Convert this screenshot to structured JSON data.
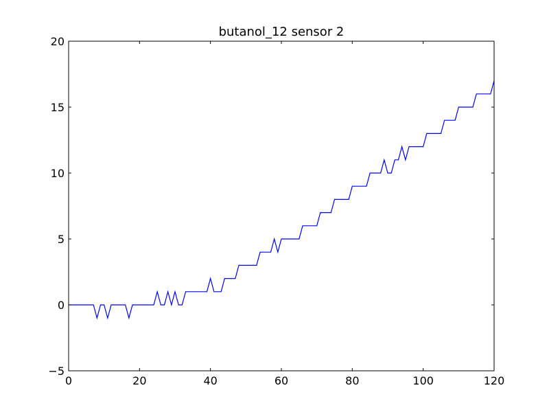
{
  "chart_data": {
    "type": "line",
    "title": "butanol_12 sensor 2",
    "xlabel": "",
    "ylabel": "",
    "xlim": [
      0,
      120
    ],
    "ylim": [
      -5,
      20
    ],
    "xticks": [
      0,
      20,
      40,
      60,
      80,
      100,
      120
    ],
    "yticks": [
      -5,
      0,
      5,
      10,
      15,
      20
    ],
    "grid": false,
    "legend": "none",
    "series": [
      {
        "color": "#0000ff",
        "x": [
          0,
          1,
          2,
          3,
          4,
          5,
          6,
          7,
          8,
          9,
          10,
          11,
          12,
          13,
          14,
          15,
          16,
          17,
          18,
          19,
          20,
          21,
          22,
          23,
          24,
          25,
          26,
          27,
          28,
          29,
          30,
          31,
          32,
          33,
          34,
          35,
          36,
          37,
          38,
          39,
          40,
          41,
          42,
          43,
          44,
          45,
          46,
          47,
          48,
          49,
          50,
          51,
          52,
          53,
          54,
          55,
          56,
          57,
          58,
          59,
          60,
          61,
          62,
          63,
          64,
          65,
          66,
          67,
          68,
          69,
          70,
          71,
          72,
          73,
          74,
          75,
          76,
          77,
          78,
          79,
          80,
          81,
          82,
          83,
          84,
          85,
          86,
          87,
          88,
          89,
          90,
          91,
          92,
          93,
          94,
          95,
          96,
          97,
          98,
          99,
          100,
          101,
          102,
          103,
          104,
          105,
          106,
          107,
          108,
          109,
          110,
          111,
          112,
          113,
          114,
          115,
          116,
          117,
          118,
          119,
          120
        ],
        "y": [
          0,
          0,
          0,
          0,
          0,
          0,
          0,
          0,
          -1,
          0,
          0,
          -1,
          0,
          0,
          0,
          0,
          0,
          -1,
          0,
          0,
          0,
          0,
          0,
          0,
          0,
          1,
          0,
          0,
          1,
          0,
          1,
          0,
          0,
          1,
          1,
          1,
          1,
          1,
          1,
          1,
          2,
          1,
          1,
          1,
          2,
          2,
          2,
          2,
          3,
          3,
          3,
          3,
          3,
          3,
          4,
          4,
          4,
          4,
          5,
          4,
          5,
          5,
          5,
          5,
          5,
          5,
          6,
          6,
          6,
          6,
          6,
          7,
          7,
          7,
          7,
          8,
          8,
          8,
          8,
          8,
          9,
          9,
          9,
          9,
          9,
          10,
          10,
          10,
          10,
          11,
          10,
          10,
          11,
          11,
          12,
          11,
          12,
          12,
          12,
          12,
          12,
          13,
          13,
          13,
          13,
          13,
          14,
          14,
          14,
          14,
          15,
          15,
          15,
          15,
          15,
          16,
          16,
          16,
          16,
          16,
          17
        ]
      }
    ]
  }
}
